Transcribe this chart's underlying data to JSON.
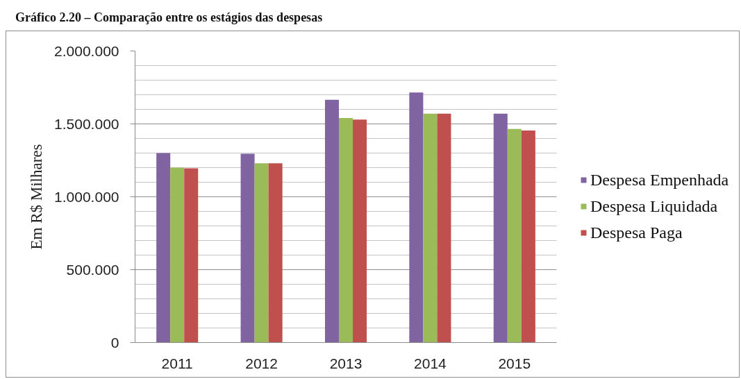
{
  "chart_data": {
    "type": "bar",
    "title": "Gráfico 2.20 – Comparação entre os estágios das despesas",
    "ylabel": "Em R$ Milhares",
    "categories": [
      "2011",
      "2012",
      "2013",
      "2014",
      "2015"
    ],
    "series": [
      {
        "name": "Despesa Empenhada",
        "color": "#8064a2",
        "values": [
          1300000,
          1295000,
          1665000,
          1715000,
          1570000
        ]
      },
      {
        "name": "Despesa Liquidada",
        "color": "#9bbb59",
        "values": [
          1200000,
          1230000,
          1540000,
          1570000,
          1465000
        ]
      },
      {
        "name": "Despesa Paga",
        "color": "#c0504d",
        "values": [
          1195000,
          1230000,
          1530000,
          1570000,
          1455000
        ]
      }
    ],
    "ylim": [
      0,
      2000000
    ],
    "yticks": [
      0,
      {
        "value": 100000,
        "label": null
      },
      {
        "value": 200000,
        "label": null
      },
      {
        "value": 300000,
        "label": null
      },
      {
        "value": 400000,
        "label": null
      },
      {
        "value": 500000,
        "label": "500.000"
      },
      {
        "value": 600000,
        "label": null
      },
      {
        "value": 700000,
        "label": null
      },
      {
        "value": 800000,
        "label": null
      },
      {
        "value": 900000,
        "label": null
      },
      {
        "value": 1000000,
        "label": "1.000.000"
      },
      {
        "value": 1100000,
        "label": null
      },
      {
        "value": 1200000,
        "label": null
      },
      {
        "value": 1300000,
        "label": null
      },
      {
        "value": 1400000,
        "label": null
      },
      {
        "value": 1500000,
        "label": "1.500.000"
      },
      {
        "value": 1600000,
        "label": null
      },
      {
        "value": 1700000,
        "label": null
      },
      {
        "value": 1800000,
        "label": null
      },
      {
        "value": 1900000,
        "label": null
      },
      {
        "value": 2000000,
        "label": "2.000.000"
      }
    ],
    "grid": "y",
    "legend": "right"
  }
}
